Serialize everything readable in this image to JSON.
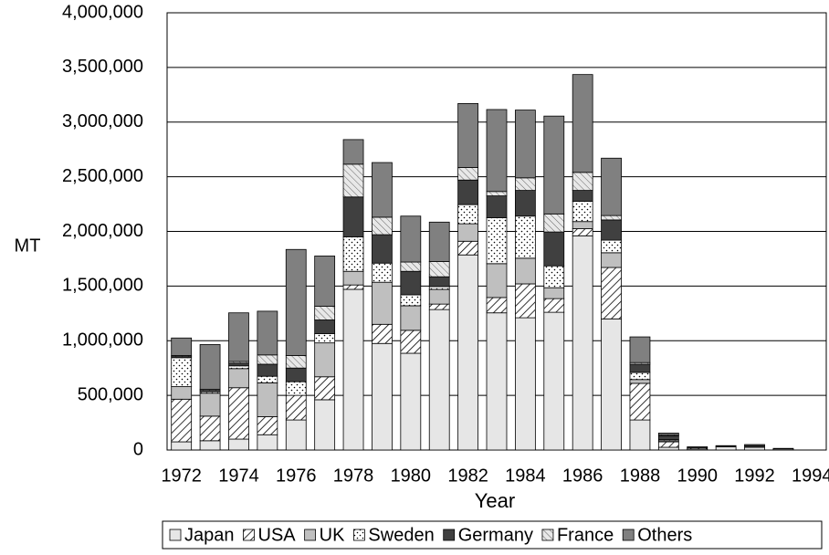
{
  "chart_data": {
    "type": "stacked-bar",
    "y_label": "MT",
    "x_label": "Year",
    "categories": [
      "1972",
      null,
      "1974",
      null,
      "1976",
      null,
      "1978",
      null,
      "1980",
      null,
      "1982",
      null,
      "1984",
      null,
      "1986",
      null,
      "1988",
      null,
      "1990",
      null,
      "1992",
      null,
      "1994"
    ],
    "series": [
      {
        "name": "Japan",
        "color": "#e6e6e6",
        "pattern": "solid",
        "values": [
          75000,
          85000,
          100000,
          140000,
          275000,
          460000,
          1470000,
          975000,
          885000,
          1285000,
          1785000,
          1255000,
          1210000,
          1260000,
          1960000,
          1200000,
          275000,
          25000,
          10000,
          30000,
          25000,
          10000,
          0
        ]
      },
      {
        "name": "USA",
        "color": "#ffffff",
        "pattern": "hatch",
        "values": [
          390000,
          225000,
          470000,
          165000,
          225000,
          210000,
          40000,
          175000,
          210000,
          50000,
          125000,
          140000,
          310000,
          125000,
          65000,
          470000,
          335000,
          50000,
          10000,
          0,
          0,
          0,
          0
        ]
      },
      {
        "name": "UK",
        "color": "#bfbfbf",
        "pattern": "solid",
        "values": [
          115000,
          210000,
          175000,
          310000,
          0,
          310000,
          125000,
          385000,
          225000,
          135000,
          160000,
          310000,
          235000,
          100000,
          65000,
          135000,
          35000,
          10000,
          0,
          0,
          0,
          0,
          0
        ]
      },
      {
        "name": "Sweden",
        "color": "#ffffff",
        "pattern": "dots",
        "values": [
          265000,
          15000,
          25000,
          60000,
          125000,
          85000,
          315000,
          175000,
          100000,
          25000,
          175000,
          420000,
          385000,
          200000,
          185000,
          115000,
          65000,
          10000,
          0,
          5000,
          0,
          0,
          0
        ]
      },
      {
        "name": "Germany",
        "color": "#404040",
        "pattern": "solid",
        "values": [
          10000,
          10000,
          25000,
          110000,
          125000,
          125000,
          365000,
          260000,
          215000,
          90000,
          225000,
          200000,
          235000,
          310000,
          100000,
          185000,
          75000,
          35000,
          0,
          0,
          15000,
          0,
          0
        ]
      },
      {
        "name": "France",
        "color": "#e0e0e0",
        "pattern": "light-hatch",
        "values": [
          10000,
          10000,
          15000,
          85000,
          115000,
          125000,
          300000,
          160000,
          85000,
          140000,
          115000,
          40000,
          115000,
          165000,
          165000,
          40000,
          15000,
          10000,
          0,
          5000,
          0,
          0,
          0
        ]
      },
      {
        "name": "Others",
        "color": "#808080",
        "pattern": "solid",
        "values": [
          160000,
          410000,
          445000,
          400000,
          970000,
          460000,
          225000,
          500000,
          420000,
          360000,
          585000,
          750000,
          620000,
          895000,
          895000,
          525000,
          235000,
          15000,
          10000,
          0,
          10000,
          5000,
          0
        ]
      }
    ],
    "ylim": [
      0,
      4000000
    ],
    "yticks": [
      0,
      {
        "value": 500000,
        "label": "500,000"
      },
      {
        "value": 1000000,
        "label": "1,000,000"
      },
      {
        "value": 1500000,
        "label": "1,500,000"
      },
      {
        "value": 2000000,
        "label": "2,000,000"
      },
      {
        "value": 2500000,
        "label": "2,500,000"
      },
      {
        "value": 3000000,
        "label": "3,000,000"
      },
      {
        "value": 3500000,
        "label": "3,500,000"
      },
      {
        "value": 4000000,
        "label": "4,000,000"
      }
    ],
    "grid": true,
    "legend": "bottom"
  }
}
